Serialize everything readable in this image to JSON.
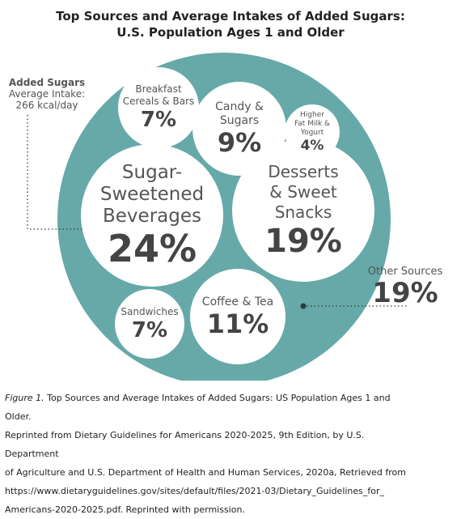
{
  "title": {
    "line1": "Top Sources and Average Intakes of Added Sugars:",
    "line2": "U.S. Population Ages 1 and Older"
  },
  "average_intake": {
    "line1": "Added Sugars",
    "line2": "Average Intake:",
    "line3": "266 kcal/day"
  },
  "colors": {
    "outer_circle": "#66a9a8",
    "bubble": "#ffffff",
    "dots": "#2f3a3a"
  },
  "chart_data": {
    "type": "bubble",
    "title": "Top Sources and Average Intakes of Added Sugars: U.S. Population Ages 1 and Older",
    "total_label": "Added Sugars Average Intake: 266 kcal/day",
    "unit": "%",
    "categories": [
      "Sugar-Sweetened Beverages",
      "Desserts & Sweet Snacks",
      "Coffee & Tea",
      "Candy & Sugars",
      "Breakfast Cereals & Bars",
      "Sandwiches",
      "Higher Fat Milk & Yogurt",
      "Other Sources"
    ],
    "values": [
      24,
      19,
      11,
      9,
      7,
      7,
      4,
      19
    ],
    "items": [
      {
        "label": "Sugar-\nSweetened\nBeverages",
        "value": 24,
        "pct": "24%"
      },
      {
        "label": "Desserts\n& Sweet\nSnacks",
        "value": 19,
        "pct": "19%"
      },
      {
        "label": "Coffee & Tea",
        "value": 11,
        "pct": "11%"
      },
      {
        "label": "Candy &\nSugars",
        "value": 9,
        "pct": "9%"
      },
      {
        "label": "Breakfast\nCereals & Bars",
        "value": 7,
        "pct": "7%"
      },
      {
        "label": "Sandwiches",
        "value": 7,
        "pct": "7%"
      },
      {
        "label": "Higher\nFat Milk &\nYogurt",
        "value": 4,
        "pct": "4%"
      }
    ],
    "other": {
      "label": "Other Sources",
      "value": 19,
      "pct": "19%"
    }
  },
  "caption": {
    "figure_label": "Figure 1.",
    "line1": " Top Sources and Average Intakes of Added Sugars: US Population Ages 1 and Older.",
    "line2": "Reprinted from Dietary Guidelines for Americans 2020-2025, 9th Edition, by U.S. Department",
    "line3": "of Agriculture and U.S. Department of Health and Human Services, 2020a, Retrieved from",
    "line4": "https://www.dietaryguidelines.gov/sites/default/files/2021-03/Dietary_Guidelines_for_",
    "line5": "Americans-2020-2025.pdf. Reprinted with permission."
  }
}
